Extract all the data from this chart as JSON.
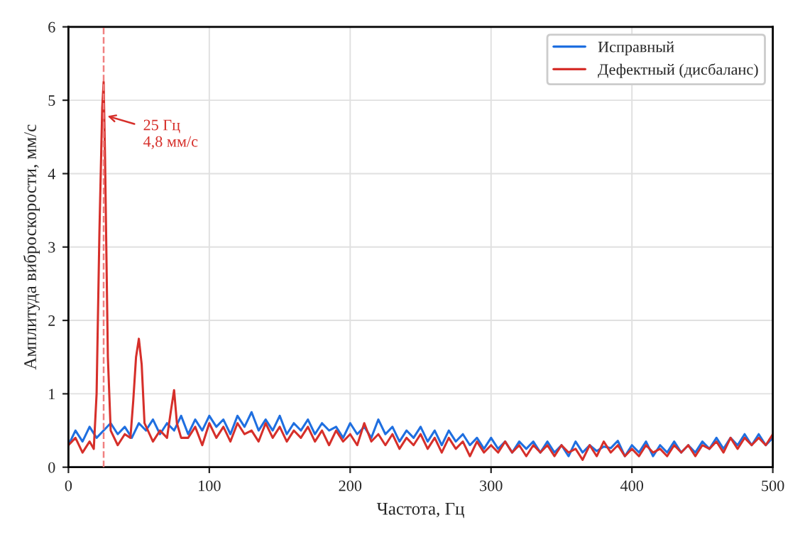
{
  "chart_data": {
    "type": "line",
    "xlabel": "Частота, Гц",
    "ylabel": "Амплитуда виброскорости, мм/с",
    "xlim": [
      0,
      500
    ],
    "xticks": [
      0,
      100,
      200,
      300,
      400,
      500
    ],
    "ylim": [
      0,
      6
    ],
    "yticks": [
      0,
      1,
      2,
      3,
      4,
      5,
      6
    ],
    "grid": true,
    "legend": "top right",
    "line_style": "solid",
    "marker": "none",
    "series": [
      {
        "name": "Исправный",
        "color": "#1f6fe0",
        "x": [
          0,
          5,
          10,
          15,
          20,
          25,
          30,
          35,
          40,
          45,
          50,
          55,
          60,
          65,
          70,
          75,
          80,
          85,
          90,
          95,
          100,
          105,
          110,
          115,
          120,
          125,
          130,
          135,
          140,
          145,
          150,
          155,
          160,
          165,
          170,
          175,
          180,
          185,
          190,
          195,
          200,
          205,
          210,
          215,
          220,
          225,
          230,
          235,
          240,
          245,
          250,
          255,
          260,
          265,
          270,
          275,
          280,
          285,
          290,
          295,
          300,
          305,
          310,
          315,
          320,
          325,
          330,
          335,
          340,
          345,
          350,
          355,
          360,
          365,
          370,
          375,
          380,
          385,
          390,
          395,
          400,
          405,
          410,
          415,
          420,
          425,
          430,
          435,
          440,
          445,
          450,
          455,
          460,
          465,
          470,
          475,
          480,
          485,
          490,
          495,
          500
        ],
        "values": [
          0.3,
          0.5,
          0.35,
          0.55,
          0.4,
          0.5,
          0.6,
          0.45,
          0.55,
          0.4,
          0.6,
          0.5,
          0.65,
          0.45,
          0.6,
          0.5,
          0.7,
          0.45,
          0.65,
          0.5,
          0.7,
          0.55,
          0.65,
          0.45,
          0.7,
          0.55,
          0.75,
          0.5,
          0.65,
          0.5,
          0.7,
          0.45,
          0.6,
          0.5,
          0.65,
          0.45,
          0.6,
          0.5,
          0.55,
          0.4,
          0.6,
          0.45,
          0.55,
          0.4,
          0.65,
          0.45,
          0.55,
          0.35,
          0.5,
          0.4,
          0.55,
          0.35,
          0.5,
          0.3,
          0.5,
          0.35,
          0.45,
          0.3,
          0.4,
          0.25,
          0.4,
          0.25,
          0.35,
          0.2,
          0.35,
          0.25,
          0.35,
          0.2,
          0.35,
          0.2,
          0.3,
          0.15,
          0.35,
          0.2,
          0.3,
          0.22,
          0.28,
          0.26,
          0.36,
          0.15,
          0.3,
          0.2,
          0.35,
          0.15,
          0.3,
          0.2,
          0.35,
          0.2,
          0.3,
          0.2,
          0.35,
          0.25,
          0.4,
          0.25,
          0.4,
          0.3,
          0.45,
          0.3,
          0.45,
          0.3,
          0.4
        ]
      },
      {
        "name": "Дефектный (дисбаланс)",
        "color": "#d62f2a",
        "x": [
          0,
          5,
          10,
          15,
          18,
          20,
          22,
          24,
          25,
          26,
          28,
          30,
          35,
          40,
          44,
          46,
          48,
          50,
          52,
          54,
          60,
          65,
          70,
          73,
          75,
          77,
          80,
          85,
          90,
          95,
          100,
          105,
          110,
          115,
          120,
          125,
          130,
          135,
          140,
          145,
          150,
          155,
          160,
          165,
          170,
          175,
          180,
          185,
          190,
          195,
          200,
          205,
          210,
          215,
          220,
          225,
          230,
          235,
          240,
          245,
          250,
          255,
          260,
          265,
          270,
          275,
          280,
          285,
          290,
          295,
          300,
          305,
          310,
          315,
          320,
          325,
          330,
          335,
          340,
          345,
          350,
          355,
          360,
          365,
          370,
          375,
          380,
          385,
          390,
          395,
          400,
          405,
          410,
          415,
          420,
          425,
          430,
          435,
          440,
          445,
          450,
          455,
          460,
          465,
          470,
          475,
          480,
          485,
          490,
          495,
          500
        ],
        "values": [
          0.3,
          0.4,
          0.2,
          0.35,
          0.25,
          1.0,
          3.2,
          4.9,
          5.25,
          4.2,
          1.5,
          0.5,
          0.3,
          0.45,
          0.4,
          0.9,
          1.5,
          1.75,
          1.4,
          0.6,
          0.35,
          0.5,
          0.4,
          0.8,
          1.05,
          0.6,
          0.4,
          0.4,
          0.55,
          0.3,
          0.6,
          0.4,
          0.55,
          0.35,
          0.6,
          0.45,
          0.5,
          0.35,
          0.6,
          0.4,
          0.55,
          0.35,
          0.5,
          0.4,
          0.55,
          0.35,
          0.5,
          0.3,
          0.5,
          0.35,
          0.45,
          0.3,
          0.6,
          0.35,
          0.45,
          0.3,
          0.45,
          0.25,
          0.4,
          0.3,
          0.45,
          0.25,
          0.4,
          0.2,
          0.4,
          0.25,
          0.35,
          0.15,
          0.35,
          0.2,
          0.3,
          0.2,
          0.35,
          0.2,
          0.3,
          0.15,
          0.3,
          0.2,
          0.3,
          0.15,
          0.3,
          0.2,
          0.25,
          0.1,
          0.3,
          0.15,
          0.35,
          0.2,
          0.3,
          0.15,
          0.25,
          0.15,
          0.3,
          0.2,
          0.25,
          0.15,
          0.3,
          0.2,
          0.3,
          0.15,
          0.3,
          0.25,
          0.35,
          0.2,
          0.4,
          0.25,
          0.4,
          0.3,
          0.4,
          0.3,
          0.45
        ]
      }
    ],
    "ref_lines": [
      {
        "axis": "x",
        "value": 25,
        "color": "#f08080",
        "line_style": "dashed"
      }
    ],
    "annotations": [
      {
        "text": "25 Гц\n4,8 мм/с",
        "x": 25,
        "y": 4.8
      }
    ]
  }
}
